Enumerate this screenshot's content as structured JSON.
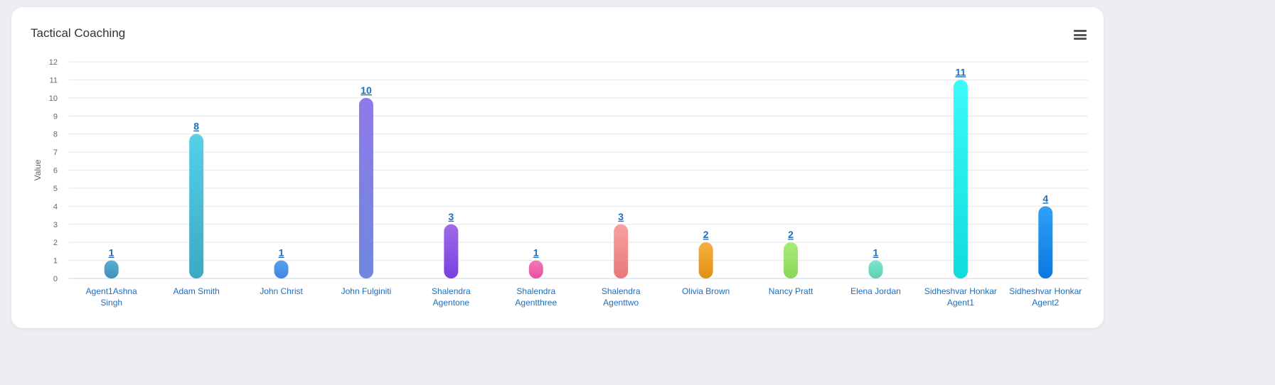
{
  "card": {
    "title": "Tactical Coaching",
    "menu_icon": "hamburger-menu-icon"
  },
  "chart_data": {
    "type": "bar",
    "title": "Tactical Coaching",
    "xlabel": "",
    "ylabel": "Value",
    "ylim": [
      0,
      12
    ],
    "yticks": [
      "0",
      "1",
      "2",
      "3",
      "4",
      "5",
      "6",
      "7",
      "8",
      "9",
      "10",
      "11",
      "12"
    ],
    "grid": true,
    "categories": [
      [
        "Agent1Ashna",
        "Singh"
      ],
      [
        "Adam Smith"
      ],
      [
        "John Christ"
      ],
      [
        "John Fulginiti"
      ],
      [
        "Shalendra",
        "Agentone"
      ],
      [
        "Shalendra",
        "Agentthree"
      ],
      [
        "Shalendra",
        "Agenttwo"
      ],
      [
        "Olivia Brown"
      ],
      [
        "Nancy Pratt"
      ],
      [
        "Elena Jordan"
      ],
      [
        "Sidheshvar Honkar",
        "Agent1"
      ],
      [
        "Sidheshvar Honkar",
        "Agent2"
      ]
    ],
    "values": [
      1,
      8,
      1,
      10,
      3,
      1,
      3,
      2,
      2,
      1,
      11,
      4
    ],
    "colors": [
      [
        "#5bb0d8",
        "#3f8fb8"
      ],
      [
        "#56d0e8",
        "#3ba9c4"
      ],
      [
        "#5aa0ee",
        "#3f86e0"
      ],
      [
        "#8f7ae8",
        "#6f87e0"
      ],
      [
        "#a06ae8",
        "#7a3fe0"
      ],
      [
        "#f07ab8",
        "#e84fa0"
      ],
      [
        "#f7a0a0",
        "#e87878"
      ],
      [
        "#f4b040",
        "#e09010"
      ],
      [
        "#a8ec78",
        "#88d858"
      ],
      [
        "#80e4c8",
        "#5cd0b0"
      ],
      [
        "#3cfafa",
        "#10dcdc"
      ],
      [
        "#30a0f8",
        "#0a78e0"
      ]
    ]
  }
}
